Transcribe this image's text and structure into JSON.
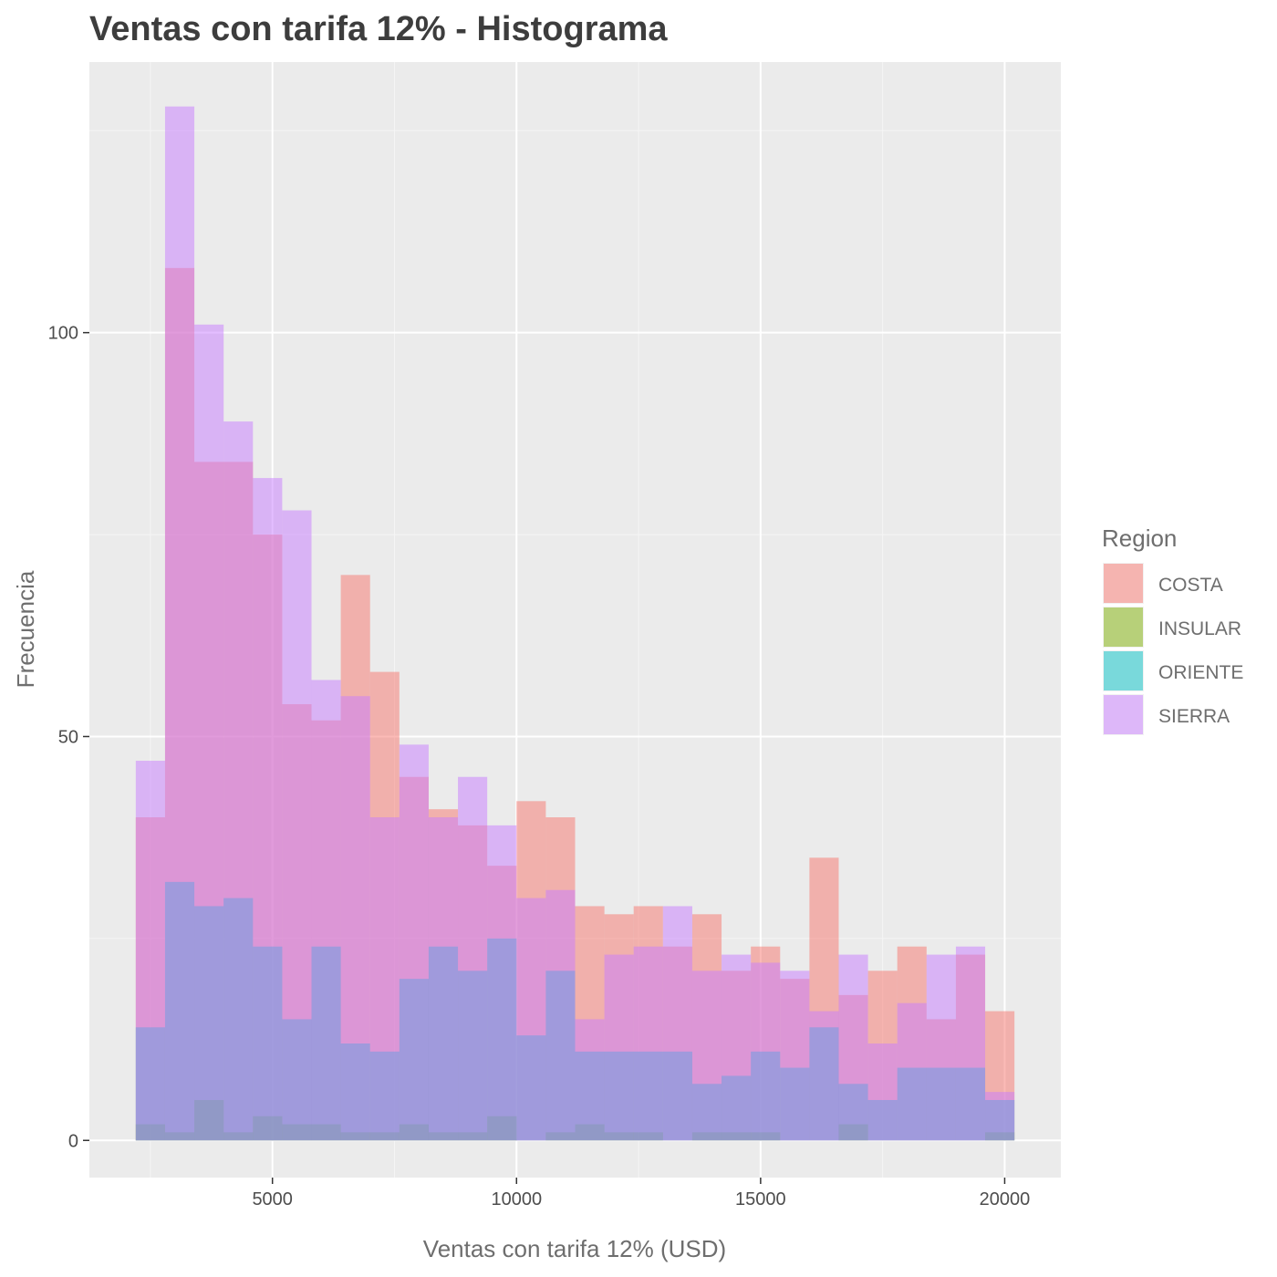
{
  "chart_data": {
    "type": "histogram",
    "title": "Ventas con tarifa 12% - Histograma",
    "xlabel": "Ventas con tarifa 12% (USD)",
    "ylabel": "Frecuencia",
    "xlim": [
      1250,
      21150
    ],
    "ylim": [
      -4.6,
      133.5
    ],
    "x_ticks": [
      5000,
      10000,
      15000,
      20000
    ],
    "y_ticks": [
      0,
      50,
      100
    ],
    "bin_width": 600,
    "bin_starts": [
      2200,
      2800,
      3400,
      4000,
      4600,
      5200,
      5800,
      6400,
      7000,
      7600,
      8200,
      8800,
      9400,
      10000,
      10600,
      11200,
      11800,
      12400,
      13000,
      13600,
      14200,
      14800,
      15400,
      16000,
      16600,
      17200,
      17800,
      18400,
      19000,
      19600
    ],
    "legend": {
      "title": "Region",
      "position": "right",
      "items": [
        {
          "label": "COSTA",
          "color": "#F8766D"
        },
        {
          "label": "INSULAR",
          "color": "#7CAE00"
        },
        {
          "label": "ORIENTE",
          "color": "#00BFC4"
        },
        {
          "label": "SIERRA",
          "color": "#C77CFF"
        }
      ]
    },
    "alpha": 0.5,
    "series": [
      {
        "name": "COSTA",
        "color": "#F8766D",
        "values": [
          40,
          108,
          84,
          84,
          75,
          54,
          52,
          70,
          58,
          45,
          41,
          39,
          34,
          42,
          40,
          29,
          28,
          29,
          24,
          28,
          21,
          24,
          20,
          35,
          18,
          21,
          24,
          15,
          23,
          16
        ]
      },
      {
        "name": "INSULAR",
        "color": "#7CAE00",
        "values": [
          2,
          1,
          5,
          1,
          3,
          2,
          2,
          1,
          1,
          2,
          1,
          1,
          3,
          0,
          1,
          2,
          1,
          1,
          0,
          1,
          1,
          1,
          0,
          0,
          2,
          0,
          0,
          0,
          0,
          1
        ]
      },
      {
        "name": "ORIENTE",
        "color": "#00BFC4",
        "values": [
          14,
          32,
          29,
          30,
          24,
          15,
          24,
          12,
          11,
          20,
          24,
          21,
          25,
          13,
          21,
          11,
          11,
          11,
          11,
          7,
          8,
          11,
          9,
          14,
          7,
          5,
          9,
          9,
          9,
          5
        ]
      },
      {
        "name": "SIERRA",
        "color": "#C77CFF",
        "values": [
          47,
          128,
          101,
          89,
          82,
          78,
          57,
          55,
          40,
          49,
          40,
          45,
          39,
          30,
          31,
          15,
          23,
          24,
          29,
          21,
          23,
          22,
          21,
          16,
          23,
          12,
          17,
          23,
          24,
          6
        ]
      }
    ]
  }
}
